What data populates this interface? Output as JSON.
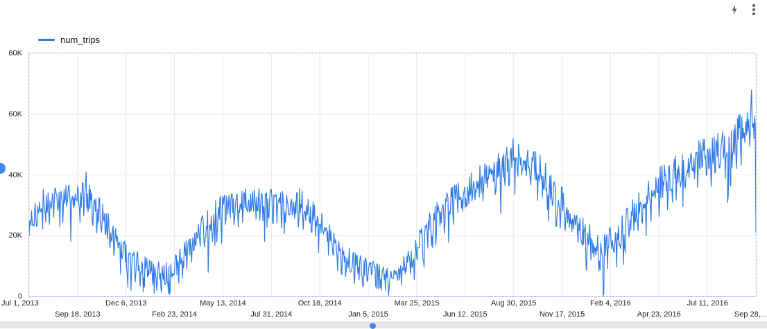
{
  "toolbar": {
    "icons": [
      {
        "name": "lightning-icon"
      },
      {
        "name": "kebab-menu-icon"
      }
    ]
  },
  "legend": {
    "label": "num_trips"
  },
  "colors": {
    "line": "#2f7ae5",
    "grid": "#e8e8e8",
    "axis_line": "#cfcfcf",
    "axis_text": "#1f1f1f",
    "selection_border": "#79a7f3",
    "accent_blue": "#4285f4",
    "icon_gray": "#5f6368"
  },
  "chart_data": {
    "type": "line",
    "title": "",
    "xlabel": "",
    "ylabel": "",
    "legend_position": "top-left",
    "grid": true,
    "series": [
      {
        "name": "num_trips",
        "color": "#2f7ae5"
      }
    ],
    "x_range": [
      "2013-07-01",
      "2016-09-28"
    ],
    "ylim": [
      0,
      80000
    ],
    "value_unit": "thousands_of_trips_per_day",
    "y_ticks": [
      {
        "v": 0,
        "label": "0"
      },
      {
        "v": 20,
        "label": "20K"
      },
      {
        "v": 40,
        "label": "40K"
      },
      {
        "v": 60,
        "label": "60K"
      },
      {
        "v": 80,
        "label": "80K"
      }
    ],
    "x_ticks": [
      "Jul 1, 2013",
      "Sep 18, 2013",
      "Dec 6, 2013",
      "Feb 23, 2014",
      "May 13, 2014",
      "Jul 31, 2014",
      "Oct 18, 2014",
      "Jan 5, 2015",
      "Mar 25, 2015",
      "Jun 12, 2015",
      "Aug 30, 2015",
      "Nov 17, 2015",
      "Feb 4, 2016",
      "Apr 23, 2016",
      "Jul 11, 2016",
      "Sep 28,..."
    ],
    "envelope": [
      {
        "d": "2013-07-01",
        "c": 22,
        "a": 5
      },
      {
        "d": "2013-07-15",
        "c": 29,
        "a": 8
      },
      {
        "d": "2013-08-15",
        "c": 32,
        "a": 7
      },
      {
        "d": "2013-09-15",
        "c": 33,
        "a": 8
      },
      {
        "d": "2013-10-10",
        "c": 31,
        "a": 8
      },
      {
        "d": "2013-11-15",
        "c": 20,
        "a": 8
      },
      {
        "d": "2013-12-15",
        "c": 11,
        "a": 7
      },
      {
        "d": "2014-01-15",
        "c": 8,
        "a": 6
      },
      {
        "d": "2014-02-15",
        "c": 7,
        "a": 6
      },
      {
        "d": "2014-03-15",
        "c": 14,
        "a": 7
      },
      {
        "d": "2014-04-15",
        "c": 23,
        "a": 8
      },
      {
        "d": "2014-05-15",
        "c": 29,
        "a": 8
      },
      {
        "d": "2014-06-15",
        "c": 31,
        "a": 7
      },
      {
        "d": "2014-07-15",
        "c": 31,
        "a": 7
      },
      {
        "d": "2014-08-15",
        "c": 30,
        "a": 7
      },
      {
        "d": "2014-09-15",
        "c": 30,
        "a": 8
      },
      {
        "d": "2014-10-15",
        "c": 26,
        "a": 8
      },
      {
        "d": "2014-11-15",
        "c": 16,
        "a": 7
      },
      {
        "d": "2014-12-15",
        "c": 10,
        "a": 6
      },
      {
        "d": "2015-01-15",
        "c": 8,
        "a": 5
      },
      {
        "d": "2015-02-15",
        "c": 6,
        "a": 4
      },
      {
        "d": "2015-03-15",
        "c": 11,
        "a": 7
      },
      {
        "d": "2015-04-15",
        "c": 23,
        "a": 8
      },
      {
        "d": "2015-05-15",
        "c": 30,
        "a": 8
      },
      {
        "d": "2015-06-15",
        "c": 33,
        "a": 9
      },
      {
        "d": "2015-07-15",
        "c": 39,
        "a": 8
      },
      {
        "d": "2015-08-15",
        "c": 44,
        "a": 8
      },
      {
        "d": "2015-09-10",
        "c": 46,
        "a": 8
      },
      {
        "d": "2015-10-15",
        "c": 40,
        "a": 9
      },
      {
        "d": "2015-11-15",
        "c": 30,
        "a": 9
      },
      {
        "d": "2015-12-15",
        "c": 22,
        "a": 8
      },
      {
        "d": "2016-01-15",
        "c": 15,
        "a": 9
      },
      {
        "d": "2016-02-15",
        "c": 19,
        "a": 9
      },
      {
        "d": "2016-03-15",
        "c": 28,
        "a": 9
      },
      {
        "d": "2016-04-15",
        "c": 35,
        "a": 9
      },
      {
        "d": "2016-05-15",
        "c": 39,
        "a": 9
      },
      {
        "d": "2016-06-15",
        "c": 45,
        "a": 9
      },
      {
        "d": "2016-07-15",
        "c": 46,
        "a": 9
      },
      {
        "d": "2016-08-15",
        "c": 49,
        "a": 9
      },
      {
        "d": "2016-09-10",
        "c": 55,
        "a": 10
      },
      {
        "d": "2016-09-24",
        "c": 60,
        "a": 8
      },
      {
        "d": "2016-09-28",
        "c": 58,
        "a": 6
      }
    ],
    "overrides": [
      {
        "d": "2013-07-01",
        "v": 20
      },
      {
        "d": "2013-10-02",
        "v": 41
      },
      {
        "d": "2013-12-09",
        "v": 3
      },
      {
        "d": "2013-12-14",
        "v": 2
      },
      {
        "d": "2014-01-03",
        "v": 1.5
      },
      {
        "d": "2014-01-21",
        "v": 1
      },
      {
        "d": "2014-02-13",
        "v": 1
      },
      {
        "d": "2015-01-26",
        "v": 2
      },
      {
        "d": "2015-02-02",
        "v": 2
      },
      {
        "d": "2015-08-29",
        "v": 52
      },
      {
        "d": "2016-01-23",
        "v": 0.3
      },
      {
        "d": "2016-01-24",
        "v": 1
      },
      {
        "d": "2016-09-21",
        "v": 68
      },
      {
        "d": "2016-09-28",
        "v": 21
      }
    ],
    "noise": {
      "seed": 7,
      "random_weight": 0.6,
      "weekend_drop": 0.5,
      "weekday_lift": 0.12,
      "rain_chance": 0.05,
      "rain_drop": 1.05
    }
  }
}
